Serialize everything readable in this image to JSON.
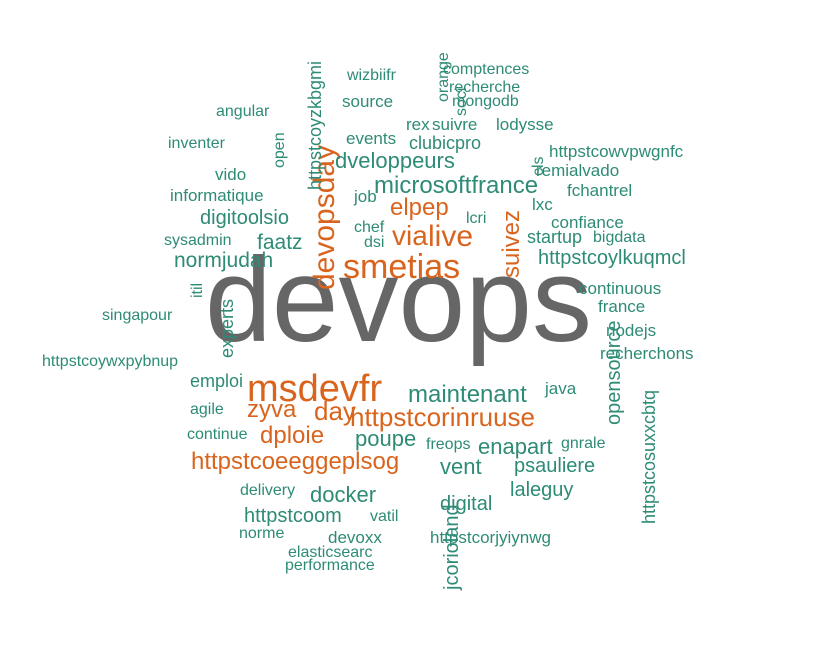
{
  "colors": {
    "grey": "#666666",
    "orange": "#d9641e",
    "teal": "#2e8b76"
  },
  "words": [
    {
      "text": "devops",
      "color": "grey"
    },
    {
      "text": "msdevfr",
      "color": "orange"
    },
    {
      "text": "smetias",
      "color": "orange"
    },
    {
      "text": "devopsday",
      "color": "orange"
    },
    {
      "text": "live",
      "color": "orange"
    },
    {
      "text": "via",
      "color": "orange"
    },
    {
      "text": "elpep",
      "color": "orange"
    },
    {
      "text": "suivez",
      "color": "orange"
    },
    {
      "text": "day",
      "color": "orange"
    },
    {
      "text": "zyva",
      "color": "orange"
    },
    {
      "text": "httpstcorinruuse",
      "color": "orange"
    },
    {
      "text": "dploie",
      "color": "orange"
    },
    {
      "text": "httpstcoeeggeplsog",
      "color": "orange"
    },
    {
      "text": "microsoftfrance",
      "color": "teal"
    },
    {
      "text": "dveloppeurs",
      "color": "teal"
    },
    {
      "text": "maintenant",
      "color": "teal"
    },
    {
      "text": "normjudah",
      "color": "teal"
    },
    {
      "text": "faatz",
      "color": "teal"
    },
    {
      "text": "digitoolsio",
      "color": "teal"
    },
    {
      "text": "httpstcoylkuqmcl",
      "color": "teal"
    },
    {
      "text": "opensource",
      "color": "teal"
    },
    {
      "text": "poupe",
      "color": "teal"
    },
    {
      "text": "vent",
      "color": "teal"
    },
    {
      "text": "docker",
      "color": "teal"
    },
    {
      "text": "enapart",
      "color": "teal"
    },
    {
      "text": "psauliere",
      "color": "teal"
    },
    {
      "text": "laleguy",
      "color": "teal"
    },
    {
      "text": "digital",
      "color": "teal"
    },
    {
      "text": "httpstcoom",
      "color": "teal"
    },
    {
      "text": "jcorioland",
      "color": "teal"
    },
    {
      "text": "httpstcoyzkbgmi",
      "color": "teal"
    },
    {
      "text": "httpstcosuxxcbtq",
      "color": "teal"
    },
    {
      "text": "experts",
      "color": "teal"
    },
    {
      "text": "emploi",
      "color": "teal"
    },
    {
      "text": "startup",
      "color": "teal"
    },
    {
      "text": "clubicpro",
      "color": "teal"
    },
    {
      "text": "wizbiifr",
      "color": "teal"
    },
    {
      "text": "comptences",
      "color": "teal"
    },
    {
      "text": "recherche",
      "color": "teal"
    },
    {
      "text": "mongodb",
      "color": "teal"
    },
    {
      "text": "orange",
      "color": "teal"
    },
    {
      "text": "soci",
      "color": "teal"
    },
    {
      "text": "source",
      "color": "teal"
    },
    {
      "text": "angular",
      "color": "teal"
    },
    {
      "text": "open",
      "color": "teal"
    },
    {
      "text": "events",
      "color": "teal"
    },
    {
      "text": "rex",
      "color": "teal"
    },
    {
      "text": "suivre",
      "color": "teal"
    },
    {
      "text": "lodysse",
      "color": "teal"
    },
    {
      "text": "inventer",
      "color": "teal"
    },
    {
      "text": "cls",
      "color": "teal"
    },
    {
      "text": "httpstcowvpwgnfc",
      "color": "teal"
    },
    {
      "text": "remialvado",
      "color": "teal"
    },
    {
      "text": "vido",
      "color": "teal"
    },
    {
      "text": "fchantrel",
      "color": "teal"
    },
    {
      "text": "informatique",
      "color": "teal"
    },
    {
      "text": "job",
      "color": "teal"
    },
    {
      "text": "lxc",
      "color": "teal"
    },
    {
      "text": "confiance",
      "color": "teal"
    },
    {
      "text": "lcri",
      "color": "teal"
    },
    {
      "text": "chef",
      "color": "teal"
    },
    {
      "text": "bigdata",
      "color": "teal"
    },
    {
      "text": "sysadmin",
      "color": "teal"
    },
    {
      "text": "dsi",
      "color": "teal"
    },
    {
      "text": "continuous",
      "color": "teal"
    },
    {
      "text": "itil",
      "color": "teal"
    },
    {
      "text": "france",
      "color": "teal"
    },
    {
      "text": "singapour",
      "color": "teal"
    },
    {
      "text": "nodejs",
      "color": "teal"
    },
    {
      "text": "recherchons",
      "color": "teal"
    },
    {
      "text": "httpstcoywxpybnup",
      "color": "teal"
    },
    {
      "text": "java",
      "color": "teal"
    },
    {
      "text": "agile",
      "color": "teal"
    },
    {
      "text": "continue",
      "color": "teal"
    },
    {
      "text": "freops",
      "color": "teal"
    },
    {
      "text": "gnrale",
      "color": "teal"
    },
    {
      "text": "delivery",
      "color": "teal"
    },
    {
      "text": "vatil",
      "color": "teal"
    },
    {
      "text": "norme",
      "color": "teal"
    },
    {
      "text": "devoxx",
      "color": "teal"
    },
    {
      "text": "httpstcorjyiynwg",
      "color": "teal"
    },
    {
      "text": "elasticsearc",
      "color": "teal"
    },
    {
      "text": "performance",
      "color": "teal"
    }
  ]
}
